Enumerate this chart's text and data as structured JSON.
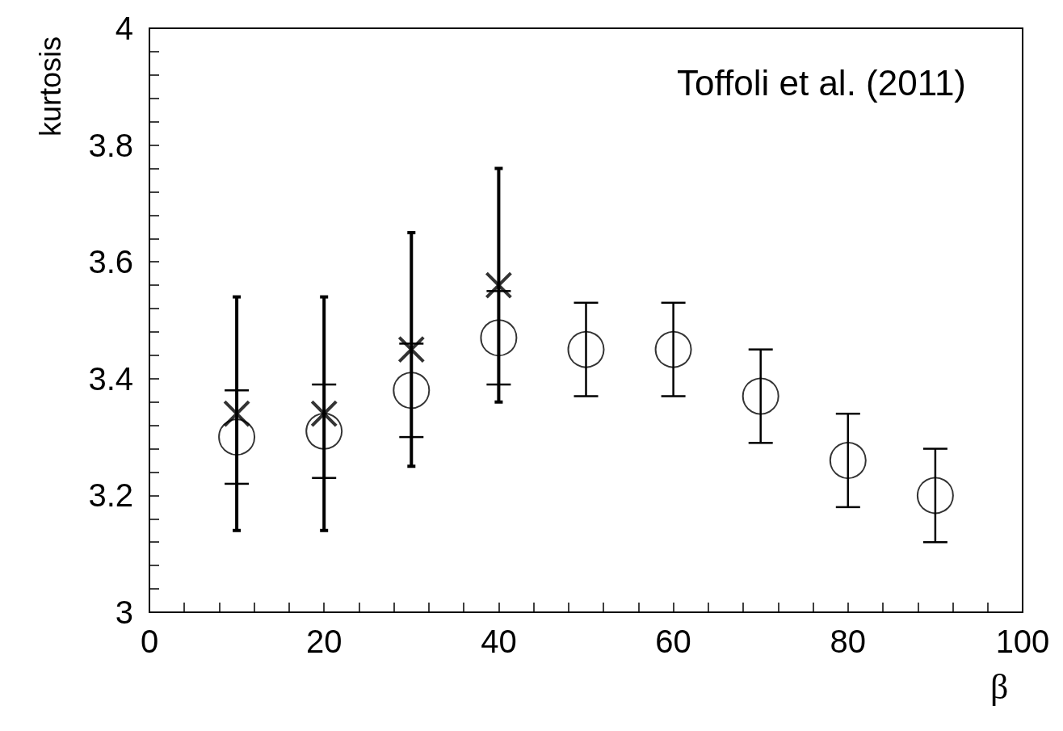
{
  "chart_data": {
    "type": "scatter",
    "xlabel": "β",
    "ylabel": "kurtosis",
    "annotations": [
      "Toffoli et al. (2011)"
    ],
    "series": [
      {
        "color": "#000000",
        "marker": "circle",
        "x": [
          10,
          20,
          30,
          40,
          50,
          60,
          70,
          80,
          90
        ],
        "values": [
          3.3,
          3.31,
          3.38,
          3.47,
          3.45,
          3.45,
          3.37,
          3.26,
          3.2
        ],
        "errors": [
          0.08,
          0.08,
          0.08,
          0.08,
          0.08,
          0.08,
          0.08,
          0.08,
          0.08
        ]
      },
      {
        "color": "#000000",
        "marker": "cross",
        "x": [
          10,
          20,
          30,
          40
        ],
        "values": [
          3.34,
          3.34,
          3.45,
          3.56
        ],
        "errors": [
          0.2,
          0.2,
          0.2,
          0.2
        ]
      }
    ],
    "xlim": [
      0,
      100
    ],
    "xticks": [
      0,
      {
        "value": 4,
        "label": null
      },
      {
        "value": 8,
        "label": null
      },
      {
        "value": 12,
        "label": null
      },
      {
        "value": 16,
        "label": null
      },
      20,
      {
        "value": 24,
        "label": null
      },
      {
        "value": 28,
        "label": null
      },
      {
        "value": 32,
        "label": null
      },
      {
        "value": 36,
        "label": null
      },
      40,
      {
        "value": 44,
        "label": null
      },
      {
        "value": 48,
        "label": null
      },
      {
        "value": 52,
        "label": null
      },
      {
        "value": 56,
        "label": null
      },
      60,
      {
        "value": 64,
        "label": null
      },
      {
        "value": 68,
        "label": null
      },
      {
        "value": 72,
        "label": null
      },
      {
        "value": 76,
        "label": null
      },
      80,
      {
        "value": 84,
        "label": null
      },
      {
        "value": 88,
        "label": null
      },
      {
        "value": 92,
        "label": null
      },
      {
        "value": 96,
        "label": null
      },
      100
    ],
    "ylim": [
      3,
      4
    ],
    "yticks": [
      3,
      {
        "value": 3.04,
        "label": null
      },
      {
        "value": 3.08,
        "label": null
      },
      {
        "value": 3.12,
        "label": null
      },
      {
        "value": 3.16,
        "label": null
      },
      3.2,
      {
        "value": 3.24,
        "label": null
      },
      {
        "value": 3.28,
        "label": null
      },
      {
        "value": 3.32,
        "label": null
      },
      {
        "value": 3.36,
        "label": null
      },
      3.4,
      {
        "value": 3.44,
        "label": null
      },
      {
        "value": 3.48,
        "label": null
      },
      {
        "value": 3.52,
        "label": null
      },
      {
        "value": 3.56,
        "label": null
      },
      3.6,
      {
        "value": 3.64,
        "label": null
      },
      {
        "value": 3.68,
        "label": null
      },
      {
        "value": 3.72,
        "label": null
      },
      {
        "value": 3.76,
        "label": null
      },
      3.8,
      {
        "value": 3.84,
        "label": null
      },
      {
        "value": 3.88,
        "label": null
      },
      {
        "value": 3.92,
        "label": null
      },
      {
        "value": 3.96,
        "label": null
      },
      4
    ],
    "grid": false,
    "legend": false
  }
}
